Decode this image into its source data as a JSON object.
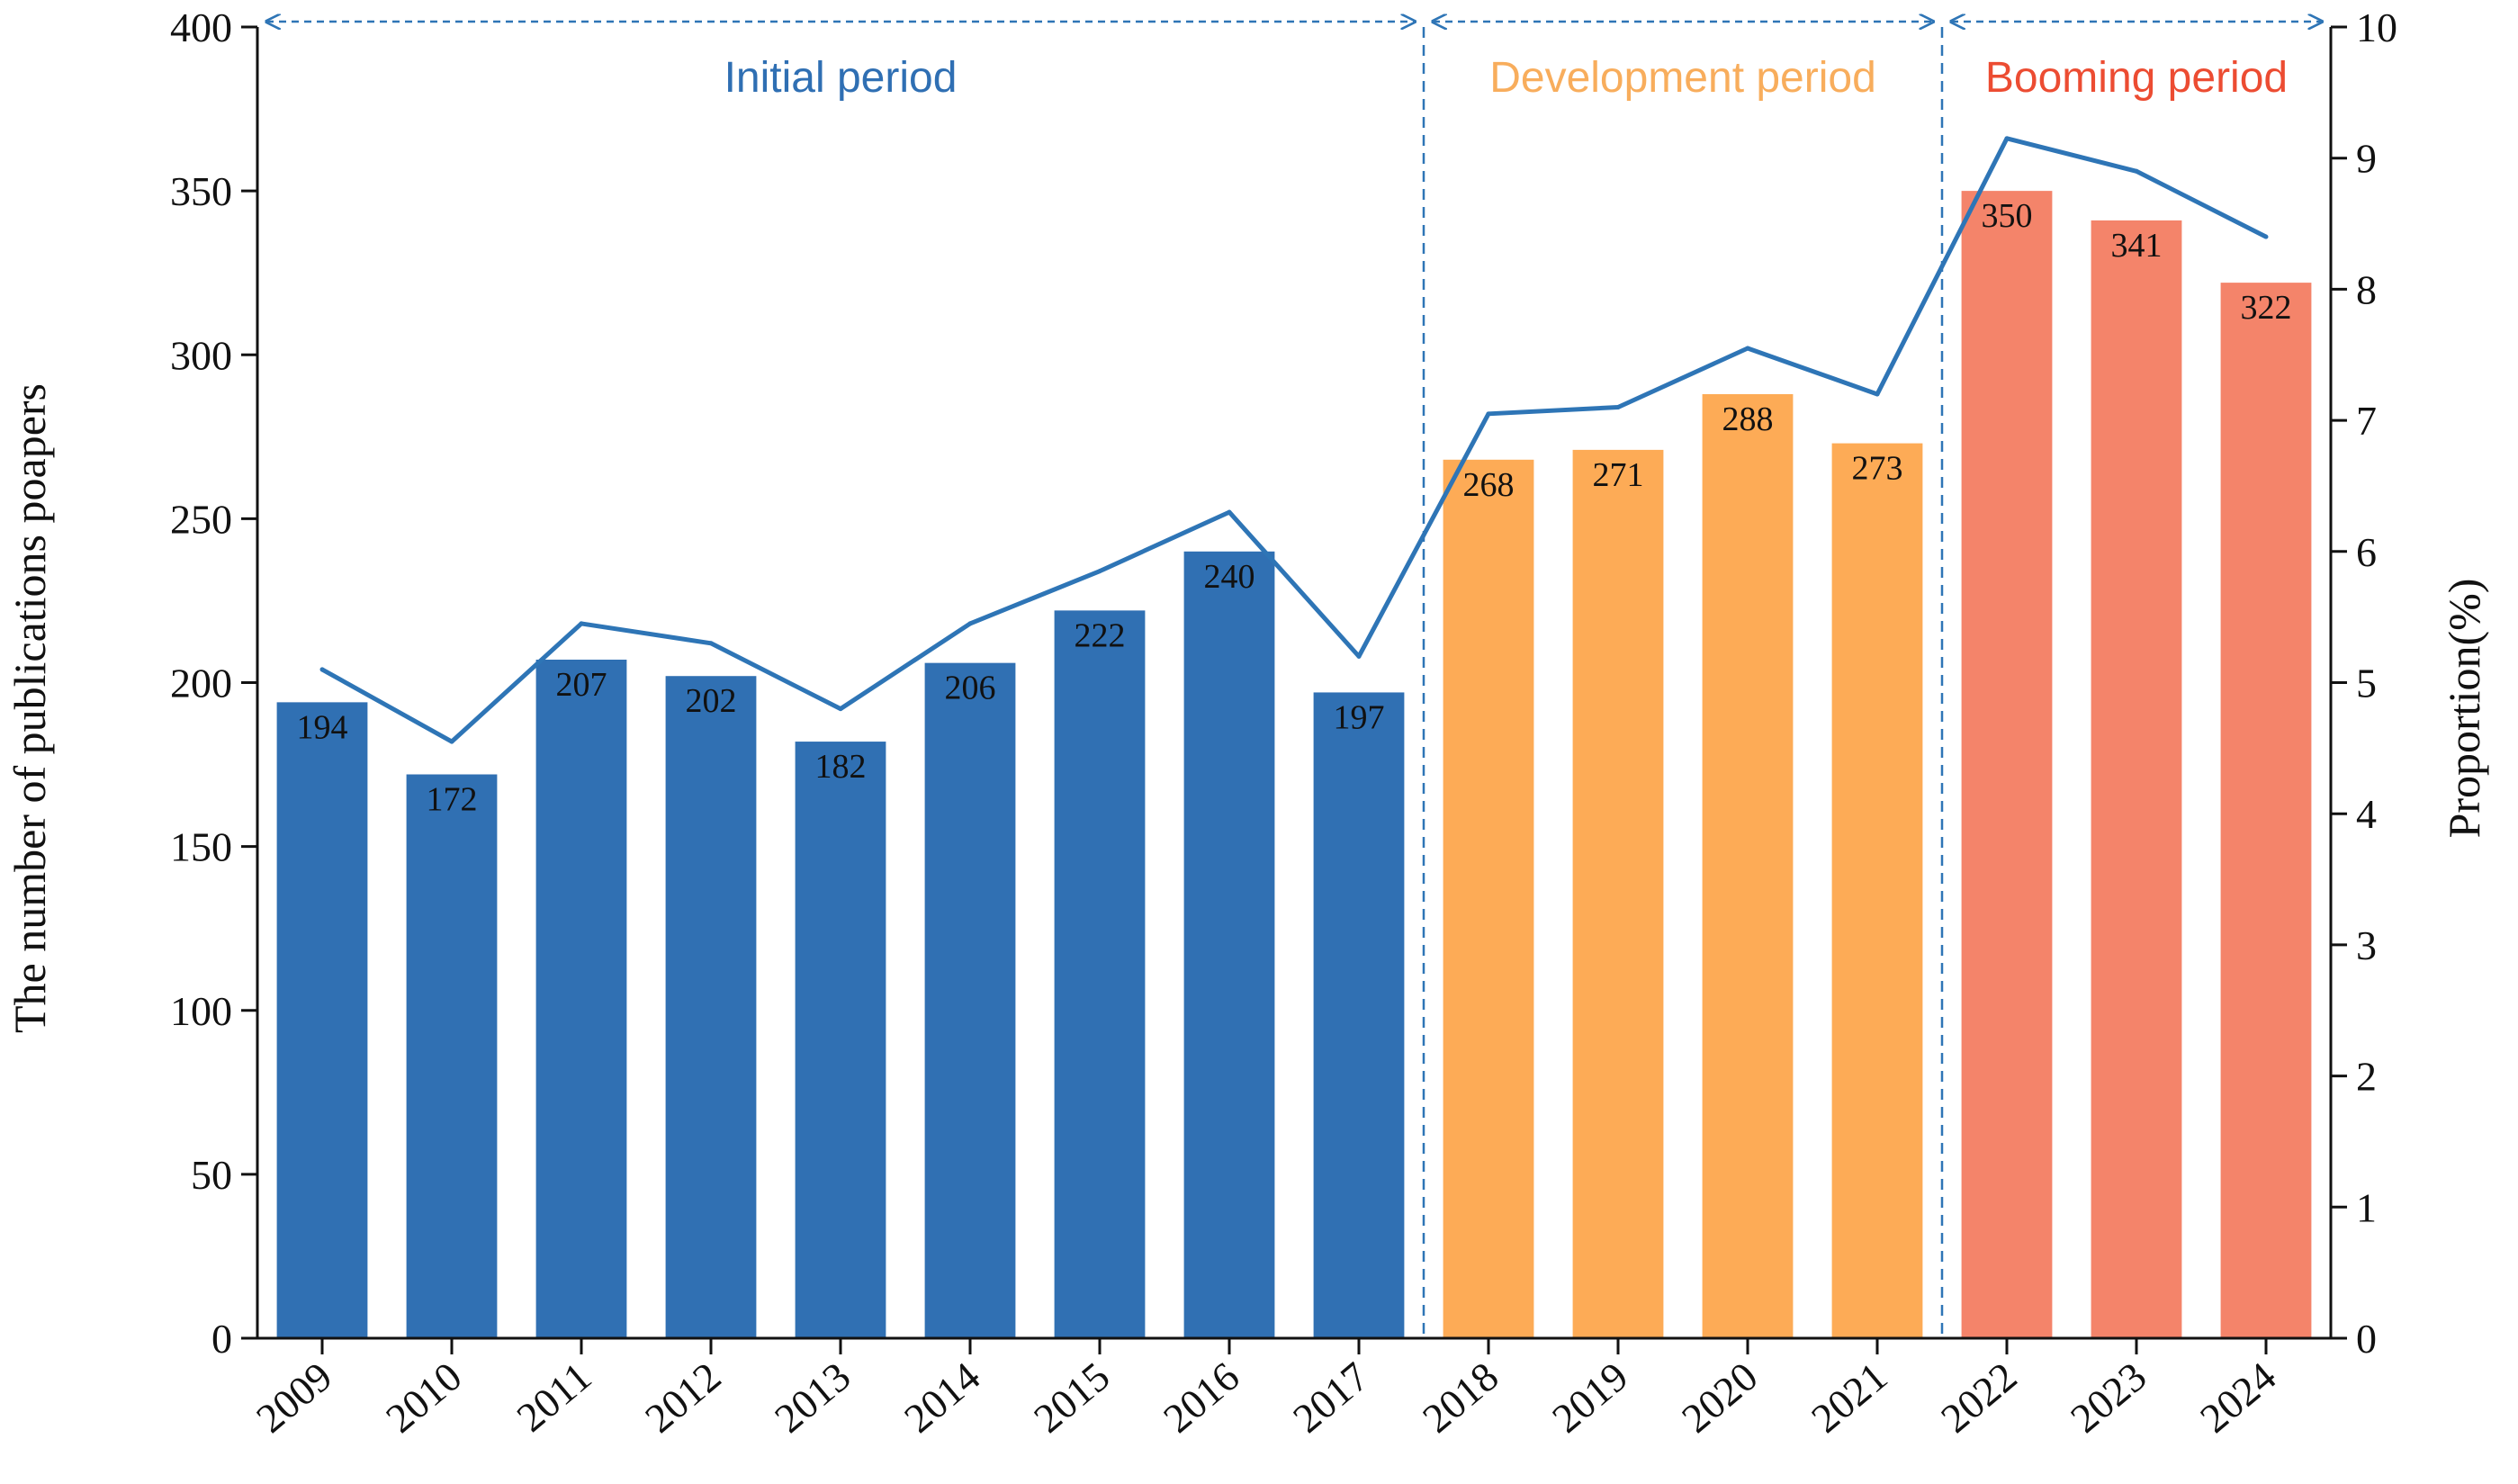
{
  "chart_data": {
    "type": "bar",
    "categories": [
      "2009",
      "2010",
      "2011",
      "2012",
      "2013",
      "2014",
      "2015",
      "2016",
      "2017",
      "2018",
      "2019",
      "2020",
      "2021",
      "2022",
      "2023",
      "2024"
    ],
    "series": [
      {
        "name": "The number of publications poapers",
        "axis": "left",
        "type": "bar",
        "values": [
          194,
          172,
          207,
          202,
          182,
          206,
          222,
          240,
          197,
          268,
          271,
          288,
          273,
          350,
          341,
          322
        ],
        "labels": [
          "194",
          "172",
          "207",
          "202",
          "182",
          "206",
          "222",
          "240",
          "197",
          "268",
          "271",
          "288",
          "273",
          "350",
          "341",
          "322"
        ]
      },
      {
        "name": "Proportion(%)",
        "axis": "right",
        "type": "line",
        "color": "#2e75b6",
        "values": [
          5.1,
          4.55,
          5.45,
          5.3,
          4.8,
          5.45,
          5.85,
          6.3,
          5.2,
          7.05,
          7.1,
          7.55,
          7.2,
          9.15,
          8.9,
          8.4
        ]
      }
    ],
    "ylabel": "The number of publications poapers",
    "y2label": "Proportion(%)",
    "ylim": [
      0,
      400
    ],
    "y2lim": [
      0,
      10
    ],
    "yticks": [
      "0",
      "50",
      "100",
      "150",
      "200",
      "250",
      "300",
      "350",
      "400"
    ],
    "y2ticks": [
      "0",
      "1",
      "2",
      "3",
      "4",
      "5",
      "6",
      "7",
      "8",
      "9",
      "10"
    ],
    "periods": [
      {
        "label": "Initial period",
        "start": "2009",
        "end": "2017",
        "color": "#2f6fb3",
        "bar_color": "#3070b3"
      },
      {
        "label": "Development period",
        "start": "2018",
        "end": "2021",
        "color": "#f8ad5c",
        "bar_color": "#fdab56"
      },
      {
        "label": "Booming period",
        "start": "2022",
        "end": "2024",
        "color": "#ec4c32",
        "bar_color": "#f4846a"
      }
    ],
    "grid": false,
    "legend": "none"
  }
}
